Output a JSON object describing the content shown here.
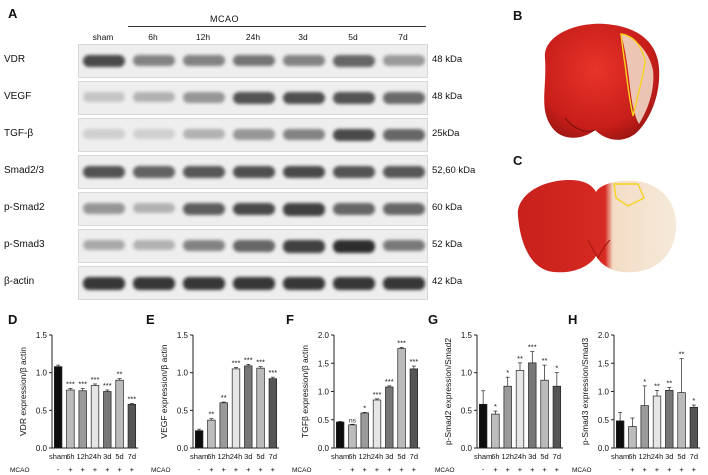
{
  "panels": {
    "A": "A",
    "B": "B",
    "C": "C",
    "D": "D",
    "E": "E",
    "F": "F",
    "G": "G",
    "H": "H"
  },
  "western": {
    "group_label": "MCAO",
    "lanes": [
      "sham",
      "6h",
      "12h",
      "24h",
      "3d",
      "5d",
      "7d"
    ],
    "rows": [
      {
        "name": "VDR",
        "kda": "48 kDa",
        "intensity": [
          0.85,
          0.55,
          0.55,
          0.62,
          0.55,
          0.7,
          0.42
        ]
      },
      {
        "name": "VEGF",
        "kda": "48 kDa",
        "intensity": [
          0.2,
          0.3,
          0.45,
          0.8,
          0.82,
          0.8,
          0.68
        ]
      },
      {
        "name": "TGF-β",
        "kda": "25kDa",
        "intensity": [
          0.15,
          0.14,
          0.3,
          0.45,
          0.55,
          0.85,
          0.7
        ]
      },
      {
        "name": "Smad2/3",
        "kda": "52,60 kDa",
        "intensity": [
          0.8,
          0.72,
          0.78,
          0.82,
          0.85,
          0.8,
          0.78
        ]
      },
      {
        "name": "p-Smad2",
        "kda": "60 kDa",
        "intensity": [
          0.45,
          0.3,
          0.75,
          0.85,
          0.9,
          0.7,
          0.7
        ]
      },
      {
        "name": "p-Smad3",
        "kda": "52 kDa",
        "intensity": [
          0.35,
          0.3,
          0.55,
          0.7,
          0.9,
          1.0,
          0.6
        ]
      },
      {
        "name": "β-actin",
        "kda": "42 kDa",
        "intensity": [
          0.95,
          0.95,
          0.95,
          0.95,
          0.95,
          0.95,
          0.95
        ]
      }
    ]
  },
  "chart_data": [
    {
      "type": "bar",
      "panel": "D",
      "categories": [
        "sham",
        "6h",
        "12h",
        "24h",
        "3d",
        "5d",
        "7d"
      ],
      "values": [
        1.08,
        0.77,
        0.76,
        0.83,
        0.75,
        0.9,
        0.58
      ],
      "errors": [
        0.02,
        0.02,
        0.03,
        0.02,
        0.02,
        0.02,
        0.01
      ],
      "significance": [
        "",
        "***",
        "***",
        "***",
        "***",
        "**",
        "***"
      ],
      "ylabel": "VDR expression/β actin",
      "ylim": [
        0,
        1.5
      ],
      "yticks": [
        "0.0",
        "0.5",
        "1.0",
        "1.5"
      ],
      "colors": [
        "#0d0d0d",
        "#bdbdbd",
        "#9a9a9a",
        "#e6e6e6",
        "#777777",
        "#bbbbbb",
        "#555555"
      ]
    },
    {
      "type": "bar",
      "panel": "E",
      "categories": [
        "sham",
        "6h",
        "12h",
        "24h",
        "3d",
        "5d",
        "7d"
      ],
      "values": [
        0.23,
        0.37,
        0.6,
        1.05,
        1.09,
        1.06,
        0.92
      ],
      "errors": [
        0.02,
        0.02,
        0.01,
        0.02,
        0.02,
        0.02,
        0.02
      ],
      "significance": [
        "",
        "**",
        "**",
        "***",
        "***",
        "***",
        "***"
      ],
      "ylabel": "VEGF expression/β actin",
      "ylim": [
        0,
        1.5
      ],
      "yticks": [
        "0.0",
        "0.5",
        "1.0",
        "1.5"
      ],
      "colors": [
        "#0d0d0d",
        "#bdbdbd",
        "#9a9a9a",
        "#e6e6e6",
        "#777777",
        "#bbbbbb",
        "#555555"
      ]
    },
    {
      "type": "bar",
      "panel": "F",
      "categories": [
        "sham",
        "6h",
        "12h",
        "24h",
        "3d",
        "5d",
        "7d"
      ],
      "values": [
        0.46,
        0.41,
        0.62,
        0.85,
        1.08,
        1.76,
        1.4
      ],
      "errors": [
        0.01,
        0.01,
        0.01,
        0.02,
        0.02,
        0.02,
        0.05
      ],
      "significance": [
        "",
        "ns",
        "*",
        "***",
        "***",
        "***",
        "***"
      ],
      "ylabel": "TGFβ expression/β actin",
      "ylim": [
        0,
        2.0
      ],
      "yticks": [
        "0.0",
        "0.5",
        "1.0",
        "1.5",
        "2.0"
      ],
      "colors": [
        "#0d0d0d",
        "#bdbdbd",
        "#9a9a9a",
        "#e6e6e6",
        "#777777",
        "#bbbbbb",
        "#555555"
      ]
    },
    {
      "type": "bar",
      "panel": "G",
      "categories": [
        "sham",
        "6h",
        "12h",
        "24h",
        "3d",
        "5d",
        "7d"
      ],
      "values": [
        0.58,
        0.45,
        0.82,
        1.03,
        1.13,
        0.9,
        0.82
      ],
      "errors": [
        0.18,
        0.04,
        0.12,
        0.1,
        0.15,
        0.2,
        0.18
      ],
      "significance": [
        "",
        "*",
        "*",
        "**",
        "***",
        "**",
        "*"
      ],
      "ylabel": "p-Smad2 expression/Smad2",
      "ylim": [
        0,
        1.5
      ],
      "yticks": [
        "0.0",
        "0.5",
        "1.0",
        "1.5"
      ],
      "colors": [
        "#0d0d0d",
        "#bdbdbd",
        "#9a9a9a",
        "#e6e6e6",
        "#777777",
        "#bbbbbb",
        "#555555"
      ]
    },
    {
      "type": "bar",
      "panel": "H",
      "categories": [
        "sham",
        "6h",
        "12h",
        "24h",
        "3d",
        "5d",
        "7d"
      ],
      "values": [
        0.48,
        0.38,
        0.75,
        0.92,
        1.02,
        0.98,
        0.72
      ],
      "errors": [
        0.15,
        0.15,
        0.35,
        0.1,
        0.05,
        0.6,
        0.04
      ],
      "significance": [
        "",
        "",
        "*",
        "**",
        "**",
        "**",
        "*"
      ],
      "ylabel": "p-Smad3 expression/Smad3",
      "ylim": [
        0,
        2.0
      ],
      "yticks": [
        "0.0",
        "0.5",
        "1.0",
        "1.5",
        "2.0"
      ],
      "colors": [
        "#0d0d0d",
        "#bdbdbd",
        "#9a9a9a",
        "#e6e6e6",
        "#777777",
        "#bbbbbb",
        "#555555"
      ]
    }
  ],
  "mcao_row": {
    "label": "MCAO",
    "signs": [
      "-",
      "+",
      "+",
      "+",
      "+",
      "+",
      "+"
    ]
  }
}
